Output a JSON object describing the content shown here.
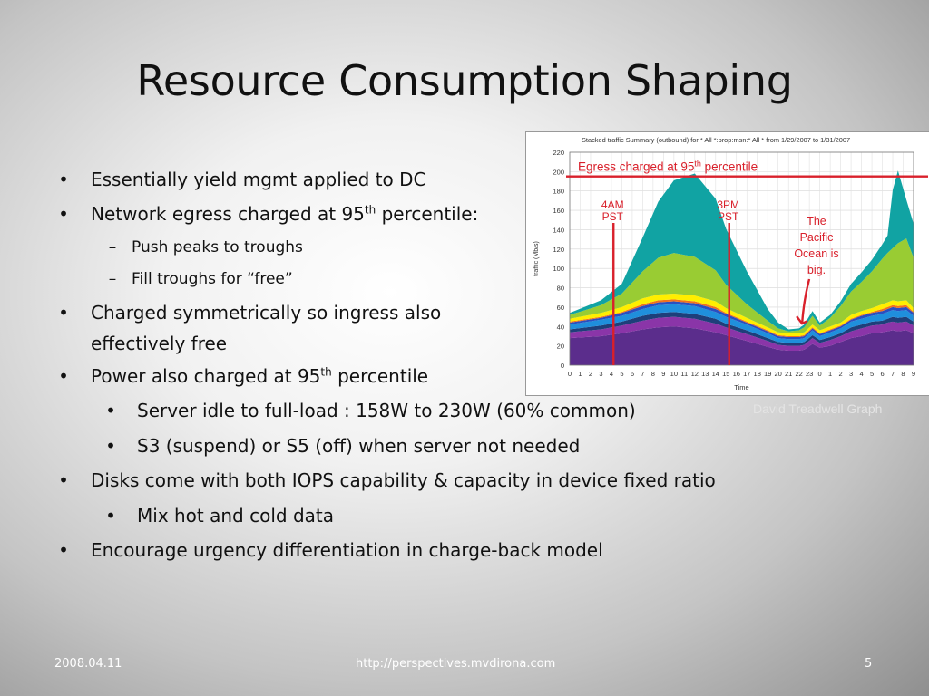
{
  "slide": {
    "title": "Resource Consumption Shaping",
    "bullets": [
      {
        "level": 1,
        "text": "Essentially yield mgmt applied to DC"
      },
      {
        "level": 1,
        "text": "Network egress charged at 95",
        "sup": "th",
        "suffix": " percentile:"
      },
      {
        "level": 2,
        "text": "Push peaks to troughs"
      },
      {
        "level": 2,
        "text": "Fill troughs for “free”"
      },
      {
        "level": 1,
        "text": "Charged symmetrically so ingress also",
        "text2": "effectively free"
      },
      {
        "level": 1,
        "text": "Power also charged at 95",
        "sup": "th",
        "suffix": " percentile"
      },
      {
        "level": 3,
        "text": "Server idle to full-load : 158W to 230W (60% common)"
      },
      {
        "level": 3,
        "text": "S3 (suspend) or S5 (off) when server not needed"
      },
      {
        "level": 1,
        "text": "Disks come with both IOPS capability & capacity in device fixed ratio"
      },
      {
        "level": 3,
        "text": "Mix hot and cold data"
      },
      {
        "level": 1,
        "text": "Encourage urgency differentiation in charge-back model"
      }
    ],
    "bullet_marks": {
      "level1": "•",
      "level2": "–",
      "level3": "•"
    },
    "credit": "David Treadwell Graph",
    "footer": {
      "date": "2008.04.11",
      "url": "http://perspectives.mvdirona.com",
      "page": "5"
    }
  },
  "chart_data": {
    "type": "area",
    "title": "Stacked traffic Summary (outbound) for * All *:prop:msn:* All * from 1/29/2007 to 1/31/2007",
    "ylabel": "traffic (Mb/s)",
    "xlabel": "Time",
    "ylim": [
      0,
      220
    ],
    "yticks": [
      0,
      20,
      40,
      60,
      80,
      100,
      120,
      140,
      160,
      180,
      200,
      220
    ],
    "xticks": [
      "0",
      "1",
      "2",
      "3",
      "4",
      "5",
      "6",
      "7",
      "8",
      "9",
      "10",
      "11",
      "12",
      "13",
      "14",
      "15",
      "16",
      "17",
      "18",
      "19",
      "20",
      "21",
      "22",
      "23",
      "0",
      "1",
      "2",
      "3",
      "4",
      "5",
      "6",
      "7",
      "8",
      "9"
    ],
    "grid": true,
    "x": [
      0,
      3,
      5,
      7,
      8.5,
      10,
      12,
      14,
      15,
      17,
      19,
      20,
      21,
      22,
      22.5,
      23.3,
      24,
      25,
      26,
      27,
      28,
      29,
      30,
      30.5,
      31,
      31.5,
      32.3,
      33
    ],
    "series": [
      {
        "color": "#5b2d8c",
        "values": [
          28,
          30,
          33,
          37,
          39,
          40,
          38,
          34,
          31,
          25,
          19,
          16,
          15,
          15,
          16,
          22,
          18,
          20,
          24,
          28,
          30,
          33,
          34,
          35,
          36,
          35,
          36,
          33
        ]
      },
      {
        "color": "#8a35a8",
        "values": [
          6,
          7,
          8,
          9,
          10,
          10,
          10,
          9,
          8,
          7,
          6,
          5,
          5,
          5,
          5,
          6,
          5,
          6,
          6,
          7,
          8,
          8,
          8,
          9,
          9,
          9,
          9,
          8
        ]
      },
      {
        "color": "#1e3f7a",
        "values": [
          3,
          4,
          4,
          5,
          5,
          5,
          5,
          5,
          4,
          4,
          3,
          3,
          3,
          3,
          3,
          3,
          3,
          3,
          3,
          4,
          4,
          4,
          4,
          4,
          5,
          5,
          5,
          4
        ]
      },
      {
        "color": "#1f8fdc",
        "values": [
          5,
          6,
          6,
          7,
          8,
          8,
          8,
          7,
          7,
          6,
          5,
          4,
          4,
          4,
          4,
          5,
          4,
          5,
          5,
          6,
          6,
          6,
          7,
          7,
          7,
          7,
          7,
          6
        ]
      },
      {
        "color": "#2a4fc0",
        "values": [
          2,
          2,
          3,
          3,
          3,
          3,
          3,
          3,
          3,
          2,
          2,
          2,
          2,
          2,
          2,
          2,
          2,
          2,
          2,
          2,
          3,
          3,
          3,
          3,
          3,
          3,
          3,
          3
        ]
      },
      {
        "color": "#f07020",
        "values": [
          1,
          1,
          1,
          2,
          2,
          2,
          2,
          2,
          1,
          1,
          1,
          1,
          1,
          1,
          1,
          1,
          1,
          1,
          1,
          1,
          1,
          1,
          2,
          2,
          2,
          2,
          2,
          1
        ]
      },
      {
        "color": "#ffee00",
        "values": [
          3,
          4,
          5,
          6,
          6,
          6,
          6,
          6,
          5,
          4,
          3,
          3,
          3,
          3,
          3,
          3,
          3,
          3,
          3,
          4,
          4,
          4,
          5,
          5,
          5,
          5,
          5,
          4
        ]
      },
      {
        "color": "#99cc33",
        "values": [
          4,
          8,
          14,
          28,
          38,
          42,
          40,
          32,
          24,
          14,
          7,
          4,
          2,
          3,
          5,
          9,
          5,
          9,
          17,
          24,
          30,
          38,
          47,
          51,
          54,
          60,
          64,
          52
        ]
      },
      {
        "color": "#11a3a3",
        "values": [
          2,
          5,
          10,
          35,
          58,
          75,
          86,
          74,
          58,
          34,
          12,
          6,
          2,
          2,
          3,
          5,
          3,
          3,
          5,
          8,
          10,
          12,
          15,
          18,
          60,
          75,
          40,
          35
        ]
      }
    ],
    "threshold": {
      "value": 195,
      "label": "Egress charged at 95",
      "label_sup": "th",
      "label_suffix": " percentile",
      "color": "#d9202b"
    },
    "markers": [
      {
        "x": 4.2,
        "label_line1": "4AM",
        "label_line2": "PST"
      },
      {
        "x": 15.3,
        "label_line1": "3PM",
        "label_line2": "PST"
      }
    ],
    "annotation": {
      "lines": [
        "The",
        "Pacific",
        "Ocean is",
        "big."
      ],
      "arrow_to": {
        "x": 22.3,
        "y": 43
      }
    }
  }
}
